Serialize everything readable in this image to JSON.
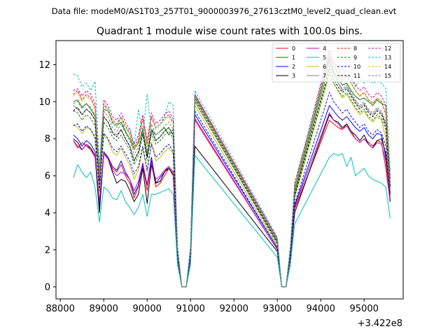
{
  "chart_data": {
    "type": "line",
    "suptitle": "Data file: modeM0/AS1T03_257T01_9000003976_27613cztM0_level2_quad_clean.evt",
    "title": "Quadrant 1 module wise count rates with 100.0s bins.",
    "xlabel": "",
    "ylabel": "",
    "x_offset_label": "+3.422e8",
    "xlim": [
      87900,
      95900
    ],
    "ylim": [
      -0.65,
      13.3
    ],
    "xticks": [
      88000,
      89000,
      90000,
      91000,
      92000,
      93000,
      94000,
      95000
    ],
    "yticks": [
      0,
      2,
      4,
      6,
      8,
      10,
      12
    ],
    "legend_position": "top-right",
    "segments": [
      {
        "start": 88300,
        "end": 91100,
        "step": 100
      },
      {
        "start": 91100,
        "end": 93000,
        "step": 1900
      },
      {
        "start": 93000,
        "end": 93400,
        "step": 100
      },
      {
        "start": 93400,
        "end": 94200,
        "step": 800
      },
      {
        "start": 94200,
        "end": 95600,
        "step": 100
      }
    ],
    "series": [
      {
        "name": "0",
        "color": "#ff0000",
        "dash": "solid",
        "values": [
          7.9,
          7.5,
          7.8,
          7.6,
          7.4,
          7.0,
          4.3,
          7.2,
          7.0,
          6.4,
          6.2,
          6.6,
          6.0,
          5.6,
          4.8,
          5.4,
          6.6,
          5.2,
          6.8,
          5.4,
          5.6,
          6.0,
          6.4,
          6.0,
          1.6,
          0.0,
          0.0,
          1.6,
          9.0,
          2.0,
          0.0,
          0.0,
          1.6,
          4.2,
          9.0,
          8.8,
          8.6,
          8.5,
          8.8,
          8.4,
          8.0,
          7.8,
          8.0,
          7.8,
          7.6,
          7.9,
          7.8,
          6.4,
          4.6
        ]
      },
      {
        "name": "1",
        "color": "#008000",
        "dash": "solid",
        "values": [
          10.0,
          10.1,
          9.7,
          9.9,
          9.6,
          9.2,
          5.5,
          9.6,
          9.5,
          8.9,
          8.7,
          8.9,
          8.4,
          8.0,
          7.4,
          7.8,
          8.5,
          7.1,
          8.5,
          8.2,
          8.4,
          8.6,
          8.2,
          8.5,
          2.0,
          0.0,
          0.0,
          2.0,
          10.3,
          2.5,
          0.0,
          0.0,
          2.0,
          5.2,
          12.4,
          11.6,
          11.2,
          10.9,
          11.0,
          10.6,
          10.3,
          10.1,
          10.2,
          10.0,
          9.8,
          10.1,
          9.9,
          9.8,
          5.0
        ]
      },
      {
        "name": "2",
        "color": "#0000ff",
        "dash": "solid",
        "values": [
          8.2,
          8.0,
          7.6,
          7.9,
          7.7,
          7.3,
          4.4,
          7.3,
          7.0,
          6.5,
          6.3,
          6.8,
          6.2,
          5.8,
          5.0,
          5.5,
          6.6,
          5.5,
          7.0,
          5.6,
          5.9,
          6.2,
          6.5,
          6.2,
          1.6,
          0.0,
          0.0,
          1.6,
          9.3,
          2.1,
          0.0,
          0.0,
          1.6,
          4.4,
          9.8,
          9.5,
          9.2,
          9.0,
          9.2,
          8.9,
          8.6,
          8.4,
          8.6,
          8.2,
          8.0,
          8.3,
          8.2,
          7.0,
          4.7
        ]
      },
      {
        "name": "3",
        "color": "#000000",
        "dash": "solid",
        "values": [
          8.0,
          7.8,
          7.4,
          7.7,
          7.5,
          7.1,
          4.0,
          7.2,
          6.9,
          6.2,
          5.6,
          5.8,
          5.7,
          5.2,
          4.6,
          5.0,
          6.4,
          4.5,
          6.6,
          5.6,
          5.7,
          6.2,
          6.4,
          6.1,
          1.5,
          0.0,
          0.0,
          1.5,
          7.6,
          1.9,
          0.0,
          0.0,
          1.5,
          4.0,
          9.3,
          9.0,
          8.9,
          8.6,
          8.8,
          8.4,
          8.2,
          7.9,
          8.2,
          7.7,
          7.5,
          7.9,
          8.0,
          7.2,
          4.6
        ]
      },
      {
        "name": "4",
        "color": "#bf00bf",
        "dash": "solid",
        "values": [
          7.9,
          7.6,
          7.4,
          7.7,
          7.4,
          7.1,
          4.6,
          7.2,
          6.9,
          6.3,
          6.0,
          6.2,
          6.1,
          5.8,
          5.2,
          5.7,
          6.7,
          5.5,
          6.7,
          5.8,
          6.0,
          6.3,
          6.5,
          6.2,
          1.6,
          0.0,
          0.0,
          1.6,
          9.1,
          2.0,
          0.0,
          0.0,
          1.6,
          4.3,
          9.4,
          9.0,
          8.8,
          8.5,
          8.7,
          8.3,
          8.0,
          7.8,
          8.0,
          7.7,
          7.5,
          7.8,
          7.7,
          6.8,
          4.7
        ]
      },
      {
        "name": "5",
        "color": "#00bfbf",
        "dash": "solid",
        "values": [
          5.9,
          6.6,
          6.2,
          5.9,
          6.2,
          5.4,
          3.5,
          5.4,
          5.2,
          4.8,
          4.7,
          5.2,
          4.6,
          4.3,
          3.9,
          4.3,
          5.0,
          3.8,
          5.0,
          5.0,
          5.1,
          5.2,
          5.3,
          5.0,
          1.2,
          0.0,
          0.0,
          1.2,
          7.1,
          1.6,
          0.0,
          0.0,
          1.2,
          3.4,
          7.0,
          7.2,
          7.1,
          7.2,
          6.5,
          7.0,
          6.0,
          6.2,
          6.4,
          6.0,
          5.8,
          5.7,
          5.6,
          5.4,
          3.7
        ]
      },
      {
        "name": "6",
        "color": "#bfbf00",
        "dash": "solid",
        "values": [
          8.8,
          8.6,
          8.3,
          8.6,
          8.5,
          8.0,
          5.1,
          8.2,
          7.9,
          7.3,
          7.1,
          7.5,
          7.0,
          6.6,
          5.8,
          6.3,
          7.5,
          6.2,
          7.8,
          6.8,
          7.0,
          7.3,
          7.5,
          7.2,
          1.8,
          0.0,
          0.0,
          1.8,
          9.8,
          2.2,
          0.0,
          0.0,
          1.8,
          4.8,
          11.5,
          11.0,
          10.6,
          10.2,
          10.4,
          10.0,
          9.6,
          9.3,
          9.5,
          9.1,
          8.9,
          9.2,
          9.0,
          8.0,
          5.2
        ]
      },
      {
        "name": "7",
        "color": "#808080",
        "dash": "solid",
        "values": [
          9.8,
          9.6,
          9.3,
          9.6,
          9.4,
          9.0,
          5.6,
          9.2,
          8.9,
          8.4,
          8.2,
          8.5,
          8.0,
          7.6,
          6.8,
          7.3,
          8.4,
          7.0,
          8.5,
          7.9,
          8.1,
          8.4,
          8.6,
          8.2,
          1.9,
          0.0,
          0.0,
          1.9,
          10.0,
          2.4,
          0.0,
          0.0,
          1.9,
          5.0,
          12.2,
          11.5,
          11.0,
          10.6,
          10.8,
          10.4,
          10.0,
          9.7,
          9.9,
          9.5,
          9.3,
          9.6,
          9.4,
          8.8,
          5.4
        ]
      },
      {
        "name": "8",
        "color": "#ff0000",
        "dash": "dashed",
        "values": [
          10.4,
          10.6,
          10.1,
          10.4,
          10.2,
          9.7,
          6.2,
          9.9,
          9.6,
          9.0,
          8.8,
          9.2,
          8.7,
          8.3,
          7.5,
          8.0,
          9.1,
          7.7,
          9.2,
          8.6,
          8.8,
          9.1,
          9.3,
          8.9,
          2.1,
          0.0,
          0.0,
          2.1,
          10.4,
          2.6,
          0.0,
          0.0,
          2.1,
          5.4,
          12.6,
          12.0,
          11.6,
          11.2,
          11.4,
          11.0,
          10.6,
          10.3,
          10.5,
          10.1,
          9.9,
          10.2,
          10.0,
          9.3,
          5.8
        ]
      },
      {
        "name": "9",
        "color": "#008000",
        "dash": "dashed",
        "values": [
          9.5,
          9.4,
          9.0,
          9.3,
          9.1,
          8.7,
          5.5,
          8.9,
          8.6,
          8.1,
          7.9,
          8.2,
          7.8,
          7.4,
          6.6,
          7.1,
          8.2,
          6.8,
          8.3,
          7.7,
          7.9,
          8.2,
          8.4,
          8.0,
          1.9,
          0.0,
          0.0,
          1.9,
          10.1,
          2.3,
          0.0,
          0.0,
          1.9,
          4.9,
          11.6,
          11.0,
          10.6,
          10.3,
          10.5,
          10.1,
          9.7,
          9.4,
          9.6,
          9.2,
          9.0,
          9.3,
          9.1,
          8.5,
          5.3
        ]
      },
      {
        "name": "10",
        "color": "#0000ff",
        "dash": "dashed",
        "values": [
          8.7,
          8.8,
          8.4,
          8.7,
          8.5,
          8.1,
          5.2,
          8.3,
          8.0,
          7.5,
          7.3,
          7.6,
          7.2,
          6.8,
          6.1,
          6.5,
          7.6,
          6.3,
          7.7,
          7.0,
          7.2,
          7.5,
          7.7,
          7.3,
          1.7,
          0.0,
          0.0,
          1.7,
          9.5,
          2.1,
          0.0,
          0.0,
          1.7,
          4.5,
          10.5,
          10.0,
          9.7,
          9.4,
          9.6,
          9.2,
          8.9,
          8.6,
          8.8,
          8.4,
          8.2,
          8.5,
          8.3,
          7.6,
          4.9
        ]
      },
      {
        "name": "11",
        "color": "#000000",
        "dash": "dashed",
        "values": [
          9.5,
          9.7,
          9.3,
          9.6,
          9.4,
          9.0,
          5.8,
          9.2,
          8.9,
          8.3,
          8.1,
          8.5,
          8.0,
          7.6,
          6.8,
          7.3,
          8.4,
          7.0,
          8.5,
          7.9,
          8.1,
          8.4,
          8.6,
          8.2,
          1.9,
          0.0,
          0.0,
          1.9,
          10.2,
          2.4,
          0.0,
          0.0,
          1.9,
          5.0,
          11.8,
          11.2,
          10.8,
          10.5,
          10.7,
          10.3,
          9.9,
          9.6,
          9.8,
          9.4,
          9.2,
          9.5,
          9.3,
          8.7,
          5.4
        ]
      },
      {
        "name": "12",
        "color": "#bf00bf",
        "dash": "dashed",
        "values": [
          10.6,
          10.7,
          10.3,
          10.6,
          10.4,
          9.9,
          6.2,
          10.1,
          9.8,
          9.2,
          9.0,
          9.4,
          8.9,
          8.5,
          7.7,
          8.2,
          9.3,
          7.9,
          9.4,
          8.8,
          9.0,
          9.3,
          9.5,
          9.1,
          2.1,
          0.0,
          0.0,
          2.1,
          10.4,
          2.6,
          0.0,
          0.0,
          2.1,
          5.5,
          12.8,
          12.2,
          11.8,
          11.5,
          11.7,
          11.3,
          10.9,
          10.6,
          10.8,
          10.4,
          10.2,
          10.5,
          10.3,
          9.8,
          6.0
        ]
      },
      {
        "name": "13",
        "color": "#00bfbf",
        "dash": "dashed",
        "values": [
          11.5,
          11.4,
          10.8,
          11.0,
          10.6,
          11.1,
          6.6,
          9.8,
          9.6,
          8.8,
          8.6,
          9.2,
          8.4,
          8.6,
          7.6,
          9.6,
          8.2,
          10.4,
          8.4,
          8.6,
          8.8,
          9.2,
          10.0,
          9.8,
          2.2,
          0.0,
          0.0,
          2.2,
          10.6,
          2.7,
          0.0,
          0.0,
          2.2,
          5.7,
          12.3,
          11.8,
          11.6,
          11.8,
          11.4,
          11.2,
          10.8,
          11.3,
          11.0,
          11.2,
          11.0,
          11.1,
          11.0,
          10.7,
          6.3
        ]
      },
      {
        "name": "14",
        "color": "#bfbf00",
        "dash": "dashed",
        "values": [
          10.3,
          10.5,
          10.0,
          10.3,
          10.1,
          9.6,
          6.0,
          9.8,
          9.5,
          8.9,
          8.7,
          9.1,
          8.6,
          8.2,
          7.4,
          7.9,
          9.0,
          7.6,
          9.1,
          8.5,
          8.7,
          9.0,
          9.2,
          8.8,
          2.0,
          0.0,
          0.0,
          2.0,
          10.2,
          2.5,
          0.0,
          0.0,
          2.0,
          5.3,
          12.5,
          11.9,
          11.5,
          11.2,
          11.4,
          11.0,
          10.6,
          10.3,
          10.5,
          10.1,
          9.9,
          10.2,
          10.0,
          9.4,
          5.8
        ]
      },
      {
        "name": "15",
        "color": "#808080",
        "dash": "dashed",
        "values": [
          9.9,
          10.0,
          9.6,
          9.9,
          9.7,
          9.3,
          5.9,
          9.5,
          9.2,
          8.6,
          8.4,
          8.8,
          8.3,
          7.9,
          7.1,
          7.6,
          8.7,
          7.3,
          8.8,
          8.2,
          8.4,
          8.7,
          8.9,
          8.5,
          2.0,
          0.0,
          0.0,
          2.0,
          10.3,
          2.5,
          0.0,
          0.0,
          2.0,
          5.1,
          12.0,
          11.4,
          11.0,
          10.7,
          10.9,
          10.5,
          10.1,
          9.8,
          10.0,
          9.6,
          9.4,
          9.7,
          9.5,
          8.9,
          5.6
        ]
      }
    ]
  }
}
